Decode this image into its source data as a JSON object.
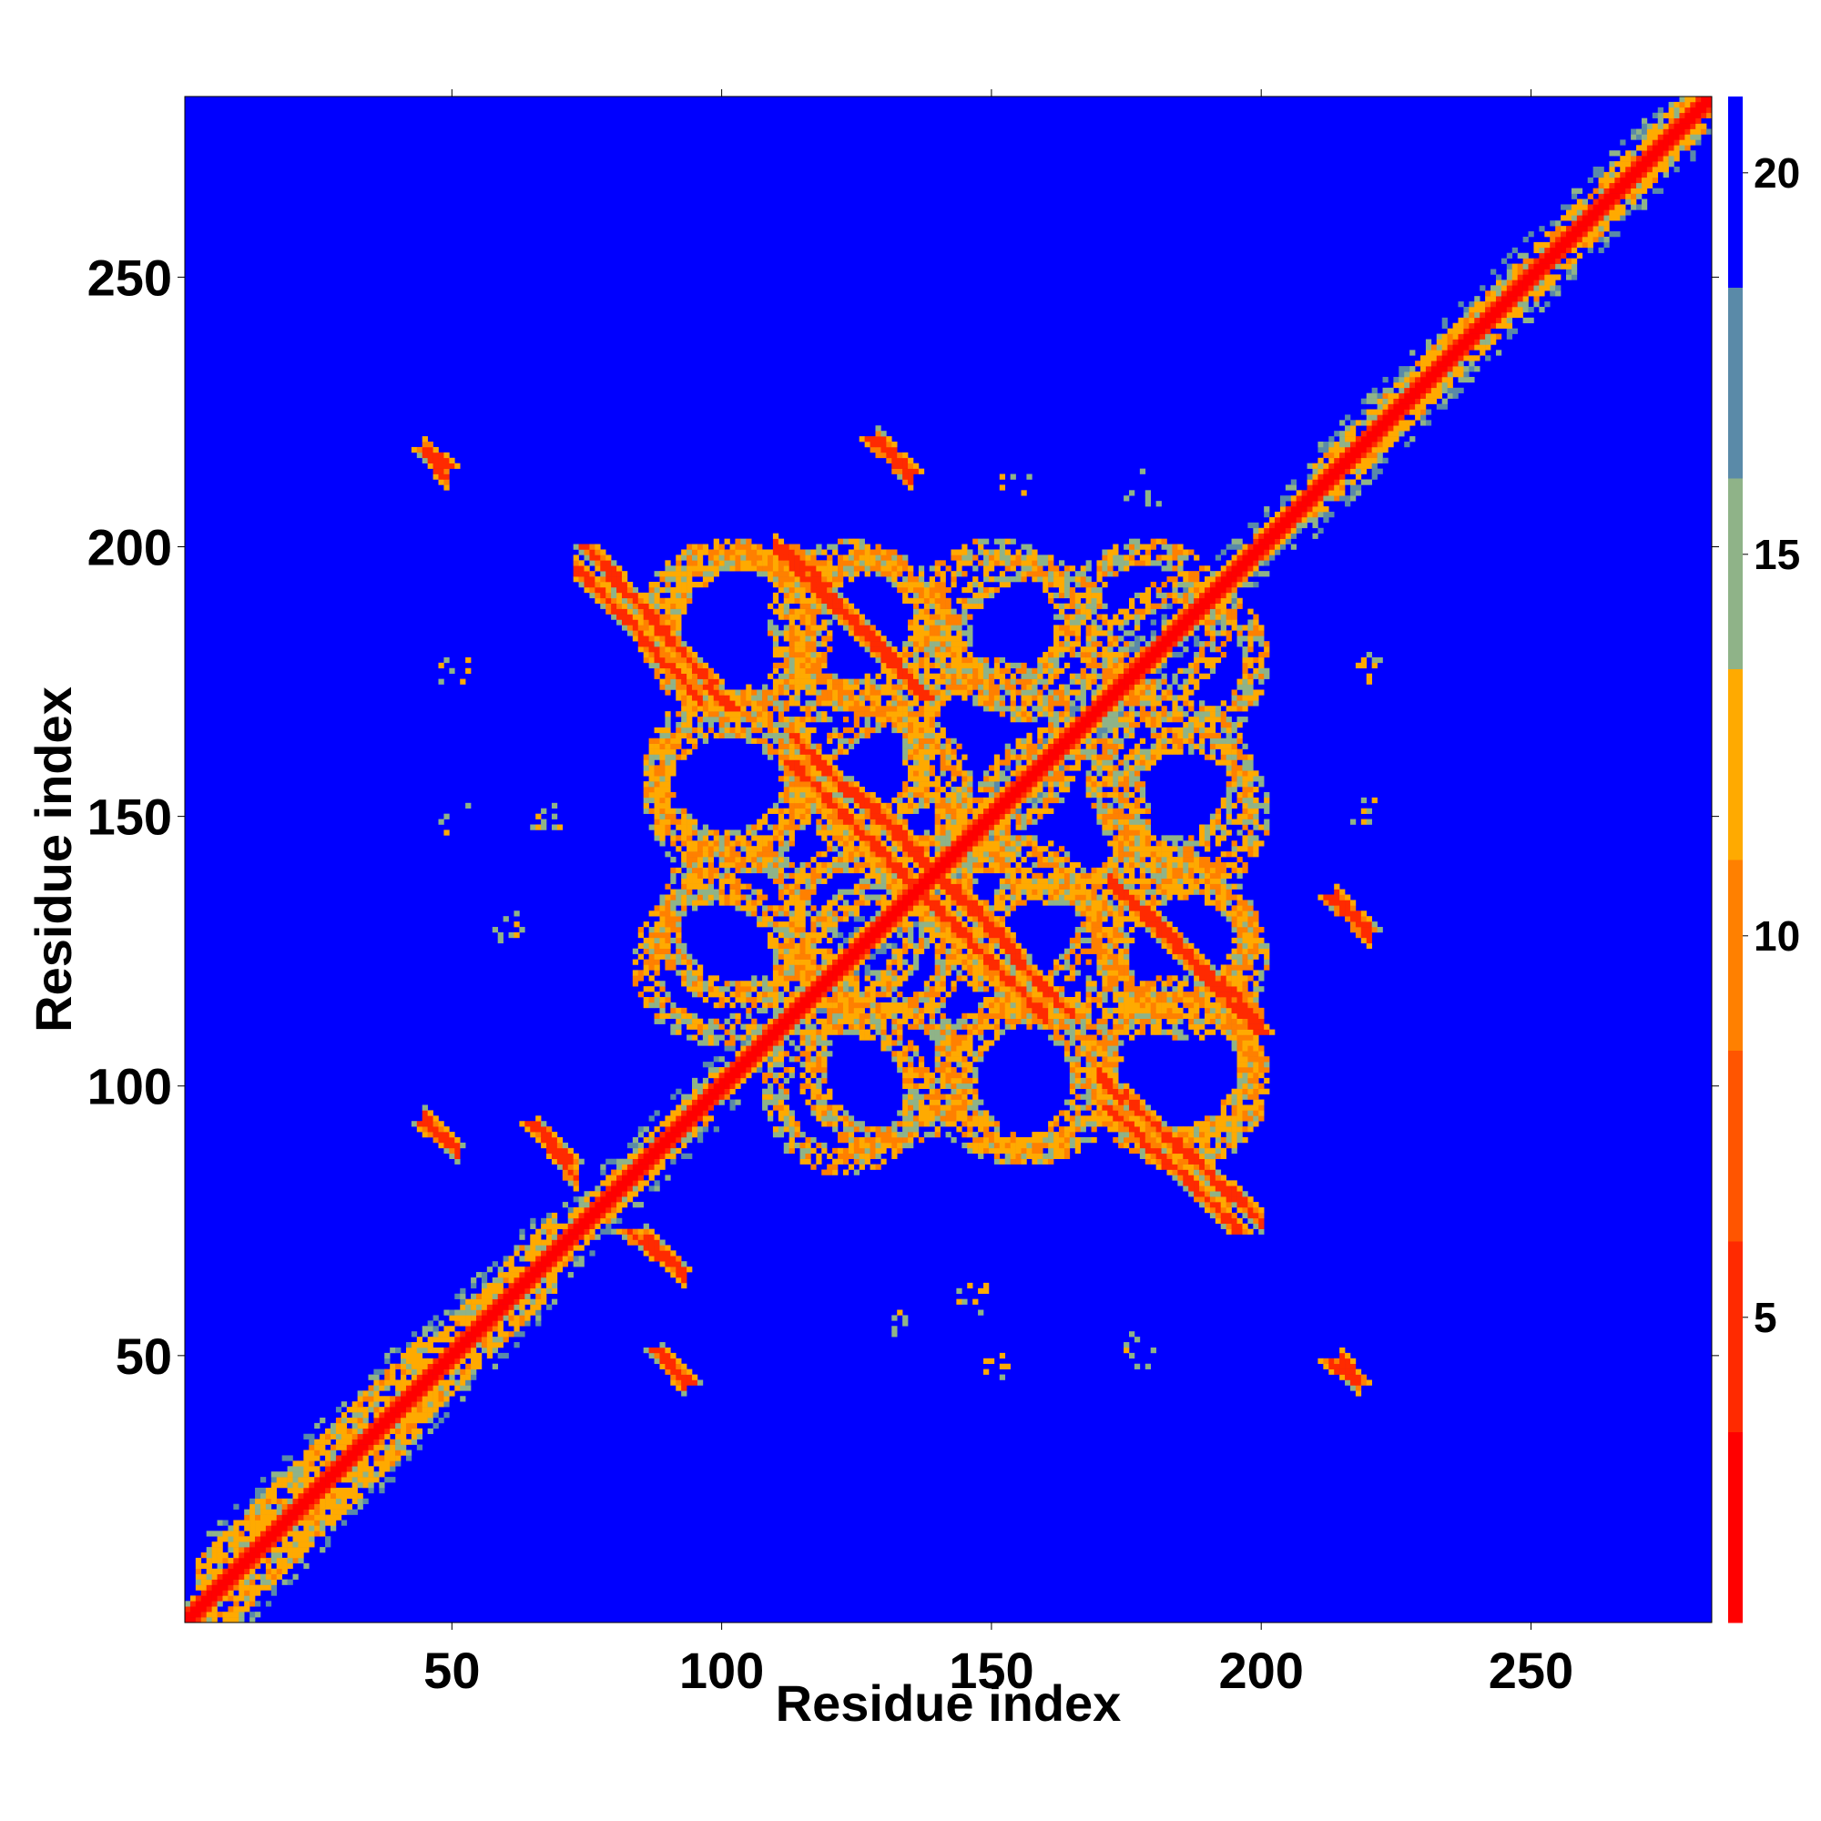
{
  "chart_data": {
    "type": "heatmap",
    "title": "",
    "xlabel": "Residue index",
    "ylabel": "Residue index",
    "xlim": [
      1,
      283
    ],
    "ylim": [
      1,
      283
    ],
    "x_ticks": [
      50,
      100,
      150,
      200,
      250
    ],
    "y_ticks": [
      50,
      100,
      150,
      200,
      250
    ],
    "x_tick_labels": [
      "50",
      "100",
      "150",
      "200",
      "250"
    ],
    "y_tick_labels": [
      "50",
      "100",
      "150",
      "200",
      "250"
    ],
    "colorbar": {
      "range": [
        1,
        21
      ],
      "ticks": [
        5,
        10,
        15,
        20
      ],
      "tick_labels": [
        "5",
        "10",
        "15",
        "20"
      ],
      "colors": [
        "#ff0000",
        "#ff2a00",
        "#ff5500",
        "#ff8000",
        "#ffaa00",
        "#8fb388",
        "#5a8aa8",
        "#0000ff"
      ]
    },
    "background_value": 21,
    "colors": {
      "background": "#0000ff",
      "contact_close": "#ff0000",
      "contact_mid": "#ff8000",
      "contact_far": "#8fb388",
      "contact_edge": "#6e95a3"
    },
    "diagonal": {
      "core_value": 2,
      "near_value": 5,
      "halo_value": 12
    },
    "structure": {
      "diag_wide_segments": [
        [
          3,
          45,
          9
        ],
        [
          45,
          70,
          7
        ],
        [
          70,
          100,
          4
        ],
        [
          100,
          140,
          3
        ],
        [
          140,
          210,
          3
        ],
        [
          210,
          283,
          5
        ]
      ],
      "antidiagonal_bands": [
        {
          "from": [
            75,
            200
          ],
          "to": [
            102,
            170
          ],
          "value": 6
        },
        {
          "from": [
            112,
            200
          ],
          "to": [
            138,
            172
          ],
          "value": 6
        },
        {
          "from": [
            113,
            160
          ],
          "to": [
            145,
            128
          ],
          "value": 6
        },
        {
          "from": [
            126,
            154
          ],
          "to": [
            165,
            113
          ],
          "value": 6
        },
        {
          "from": [
            174,
            136
          ],
          "to": [
            200,
            110
          ],
          "value": 6
        },
        {
          "from": [
            172,
            96
          ],
          "to": [
            196,
            73
          ],
          "value": 6
        },
        {
          "from": [
            128,
            220
          ],
          "to": [
            135,
            214
          ],
          "value": 6
        },
        {
          "from": [
            213,
            135
          ],
          "to": [
            220,
            129
          ],
          "value": 6
        },
        {
          "from": [
            45,
            218
          ],
          "to": [
            49,
            215
          ],
          "value": 6
        },
        {
          "from": [
            45,
            93
          ],
          "to": [
            50,
            89
          ],
          "value": 6
        },
        {
          "from": [
            65,
            93
          ],
          "to": [
            72,
            86
          ],
          "value": 6
        },
        {
          "from": [
            83,
            73
          ],
          "to": [
            92,
            66
          ],
          "value": 6
        },
        {
          "from": [
            88,
            51
          ],
          "to": [
            94,
            45
          ],
          "value": 6
        },
        {
          "from": [
            213,
            49
          ],
          "to": [
            218,
            45
          ],
          "value": 6
        }
      ],
      "rings": [
        {
          "cx": 101,
          "cy": 185,
          "r": 14
        },
        {
          "cx": 124,
          "cy": 186,
          "r": 13
        },
        {
          "cx": 151,
          "cy": 186,
          "r": 13
        },
        {
          "cx": 179,
          "cy": 186,
          "r": 13
        },
        {
          "cx": 101,
          "cy": 158,
          "r": 13
        },
        {
          "cx": 125,
          "cy": 160,
          "r": 12
        },
        {
          "cx": 150,
          "cy": 163,
          "r": 14
        },
        {
          "cx": 183,
          "cy": 157,
          "r": 13
        },
        {
          "cx": 103,
          "cy": 130,
          "r": 13
        },
        {
          "cx": 124,
          "cy": 130,
          "r": 12
        },
        {
          "cx": 155,
          "cy": 131,
          "r": 13
        },
        {
          "cx": 184,
          "cy": 128,
          "r": 13
        },
        {
          "cx": 123,
          "cy": 99,
          "r": 13
        },
        {
          "cx": 154,
          "cy": 101,
          "r": 13
        },
        {
          "cx": 184,
          "cy": 104,
          "r": 14
        }
      ],
      "speckles": [
        {
          "cx": 50,
          "cy": 178
        },
        {
          "cx": 51,
          "cy": 150
        },
        {
          "cx": 67,
          "cy": 150
        },
        {
          "cx": 60,
          "cy": 130
        },
        {
          "cx": 146,
          "cy": 61
        },
        {
          "cx": 132,
          "cy": 56
        },
        {
          "cx": 178,
          "cy": 51
        },
        {
          "cx": 151,
          "cy": 48
        },
        {
          "cx": 155,
          "cy": 211
        },
        {
          "cx": 178,
          "cy": 211
        },
        {
          "cx": 220,
          "cy": 178
        },
        {
          "cx": 219,
          "cy": 150
        }
      ]
    }
  }
}
